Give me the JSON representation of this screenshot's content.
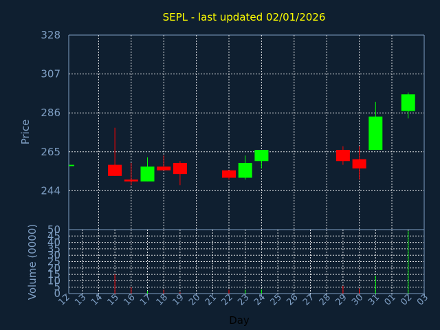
{
  "chart_data": {
    "type": "candlestick",
    "title": "SEPL - last updated 02/01/2026",
    "xlabel": "Day",
    "price_panel": {
      "ylabel": "Price",
      "ylim": [
        223,
        328
      ],
      "yticks": [
        "328",
        "307",
        "286",
        "265",
        "244"
      ],
      "ytick_values": [
        328,
        307,
        286,
        265,
        244
      ]
    },
    "volume_panel": {
      "ylabel": "Volume (0000)",
      "ylim": [
        0,
        50
      ],
      "yticks": [
        "50",
        "45",
        "40",
        "35",
        "30",
        "25",
        "20",
        "15",
        "10",
        "5",
        "0"
      ],
      "ytick_values": [
        50,
        45,
        40,
        35,
        30,
        25,
        20,
        15,
        10,
        5,
        0
      ]
    },
    "x_ticks": [
      "12",
      "13",
      "14",
      "15",
      "16",
      "17",
      "18",
      "19",
      "20",
      "21",
      "22",
      "23",
      "24",
      "25",
      "26",
      "27",
      "28",
      "29",
      "30",
      "31",
      "01",
      "02",
      "03"
    ],
    "up_color": "#00ff00",
    "down_color": "#ff0000",
    "candles": [
      {
        "day": "12",
        "open": 258,
        "high": 258,
        "low": 258,
        "close": 258,
        "volume": 0
      },
      {
        "day": "15",
        "open": 258,
        "high": 278,
        "low": 252,
        "close": 252,
        "volume": 15
      },
      {
        "day": "16",
        "open": 250,
        "high": 259,
        "low": 247,
        "close": 249,
        "volume": 5
      },
      {
        "day": "17",
        "open": 249,
        "high": 262,
        "low": 249,
        "close": 257,
        "volume": 2
      },
      {
        "day": "18",
        "open": 257,
        "high": 263,
        "low": 255,
        "close": 255,
        "volume": 3
      },
      {
        "day": "19",
        "open": 259,
        "high": 260,
        "low": 247,
        "close": 253,
        "volume": 1
      },
      {
        "day": "22",
        "open": 255,
        "high": 255,
        "low": 250,
        "close": 251,
        "volume": 3
      },
      {
        "day": "23",
        "open": 251,
        "high": 263,
        "low": 250,
        "close": 259,
        "volume": 3
      },
      {
        "day": "24",
        "open": 260,
        "high": 266,
        "low": 256,
        "close": 266,
        "volume": 3
      },
      {
        "day": "29",
        "open": 266,
        "high": 268,
        "low": 258,
        "close": 260,
        "volume": 6
      },
      {
        "day": "30",
        "open": 261,
        "high": 268,
        "low": 250,
        "close": 256,
        "volume": 4
      },
      {
        "day": "31",
        "open": 266,
        "high": 292,
        "low": 266,
        "close": 284,
        "volume": 14
      },
      {
        "day": "02",
        "open": 287,
        "high": 297,
        "low": 283,
        "close": 296,
        "volume": 49
      }
    ]
  }
}
